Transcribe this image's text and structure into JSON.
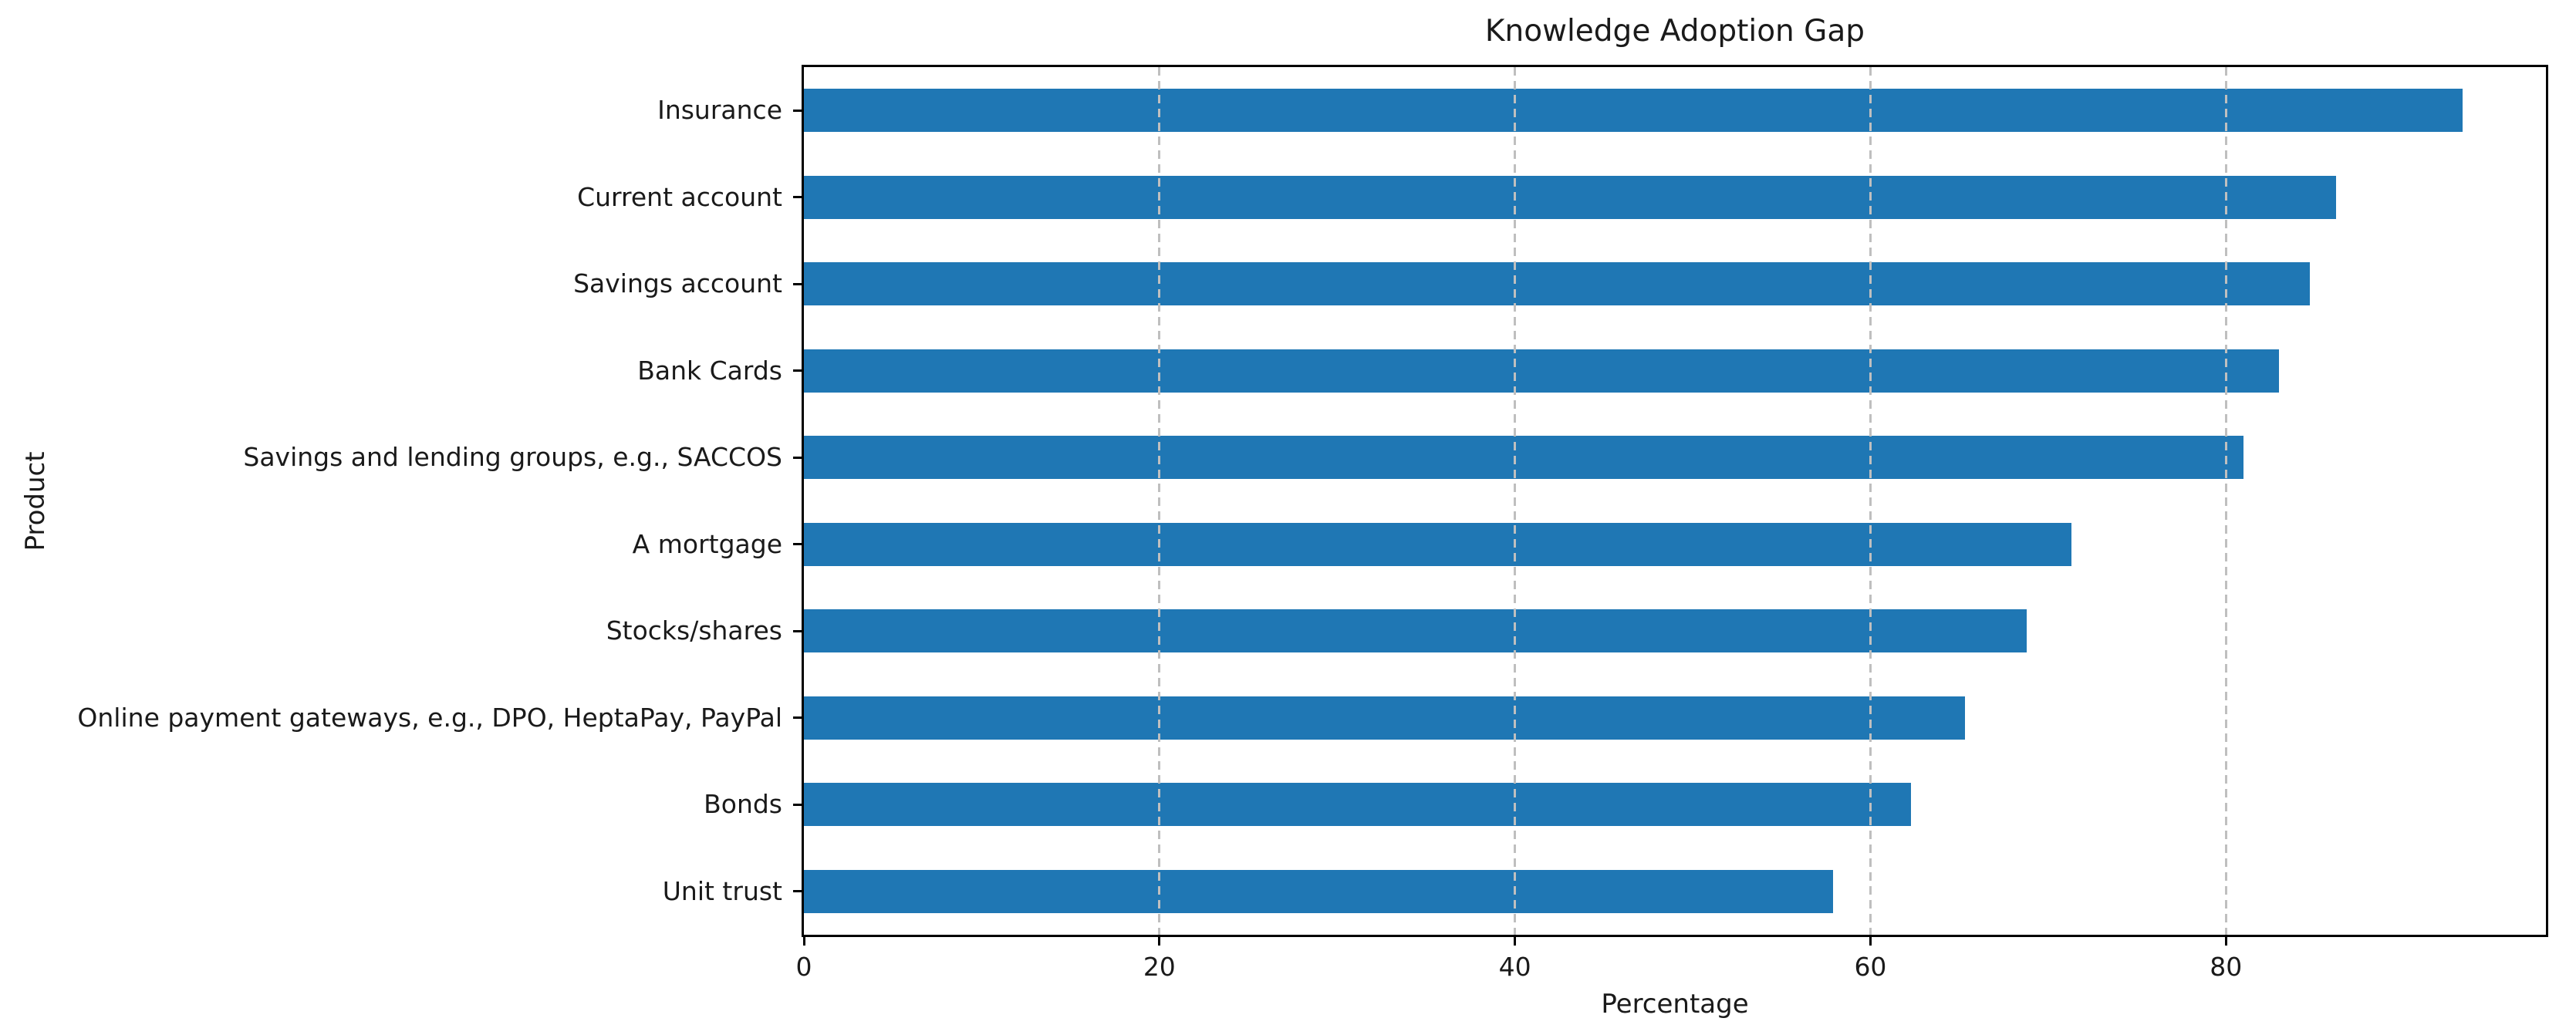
{
  "chart_data": {
    "type": "bar",
    "orientation": "horizontal",
    "title": "Knowledge Adoption Gap",
    "xlabel": "Percentage",
    "ylabel": "Product",
    "categories": [
      "Insurance",
      "Current account",
      "Savings account",
      "Bank Cards",
      "Savings and lending groups, e.g., SACCOS",
      "A mortgage",
      "Stocks/shares",
      "Online payment gateways, e.g., DPO, HeptaPay, PayPal",
      "Bonds",
      "Unit trust"
    ],
    "values": [
      93.3,
      86.2,
      84.7,
      83.0,
      81.0,
      71.3,
      68.8,
      65.3,
      62.3,
      57.9
    ],
    "xlim": [
      0,
      98
    ],
    "xticks": [
      0,
      20,
      40,
      60,
      80
    ],
    "bar_color": "#1f77b4",
    "grid": {
      "axis": "x",
      "style": "dashed",
      "color": "#bfbfbf",
      "above_bars": true
    }
  }
}
